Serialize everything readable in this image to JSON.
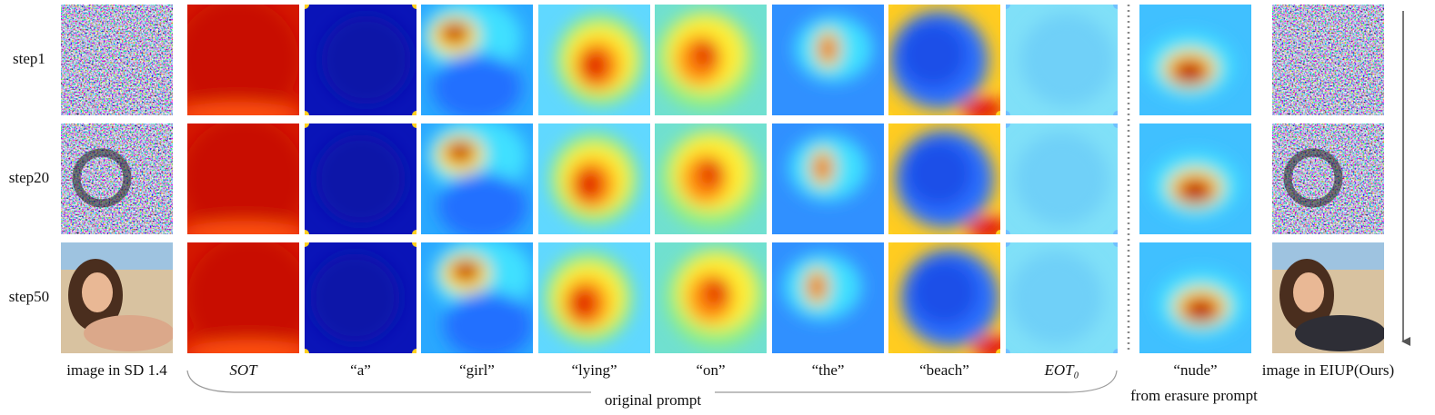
{
  "row_labels": [
    "step1",
    "step20",
    "step50"
  ],
  "column_labels": [
    "image in SD 1.4",
    "SOT",
    "“a”",
    "“girl”",
    "“lying”",
    "“on”",
    "“the”",
    "“beach”",
    "EOT₀",
    "“nude”",
    "image in EIUP(Ours)"
  ],
  "group_labels": {
    "original": "original prompt",
    "erasure": "from erasure prompt"
  }
}
